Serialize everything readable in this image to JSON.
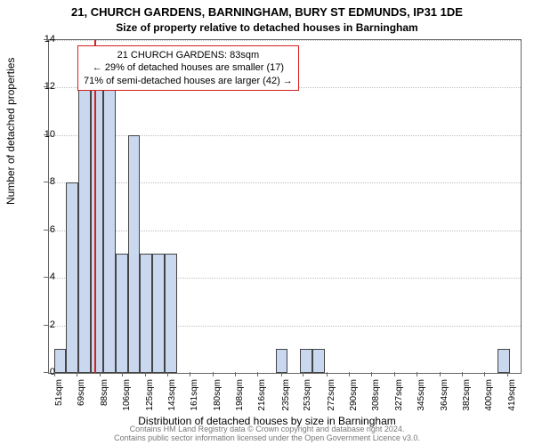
{
  "titles": {
    "main": "21, CHURCH GARDENS, BARNINGHAM, BURY ST EDMUNDS, IP31 1DE",
    "sub": "Size of property relative to detached houses in Barningham"
  },
  "axes": {
    "ylabel": "Number of detached properties",
    "xlabel": "Distribution of detached houses by size in Barningham",
    "ylim": [
      0,
      14
    ],
    "ytick_step": 2,
    "label_fontsize": 12,
    "tick_fontsize": 11
  },
  "chart": {
    "type": "histogram",
    "bar_color": "#c9d7ef",
    "bar_border": "#444",
    "grid_color": "#bfbfbf",
    "background_color": "#ffffff",
    "reference_line_color": "#d62020",
    "reference_line_x": 83,
    "x_range": [
      46,
      429
    ],
    "x_ticks": [
      51,
      69,
      88,
      106,
      125,
      143,
      161,
      180,
      198,
      216,
      235,
      253,
      272,
      290,
      308,
      327,
      345,
      364,
      382,
      400,
      419
    ],
    "x_tick_suffix": "sqm",
    "bars": [
      {
        "x0": 50,
        "x1": 60,
        "y": 1
      },
      {
        "x0": 60,
        "x1": 70,
        "y": 8
      },
      {
        "x0": 70,
        "x1": 80,
        "y": 13
      },
      {
        "x0": 80,
        "x1": 90,
        "y": 12
      },
      {
        "x0": 90,
        "x1": 100,
        "y": 12
      },
      {
        "x0": 100,
        "x1": 110,
        "y": 5
      },
      {
        "x0": 110,
        "x1": 120,
        "y": 10
      },
      {
        "x0": 120,
        "x1": 130,
        "y": 5
      },
      {
        "x0": 130,
        "x1": 140,
        "y": 5
      },
      {
        "x0": 140,
        "x1": 150,
        "y": 5
      },
      {
        "x0": 230,
        "x1": 240,
        "y": 1
      },
      {
        "x0": 250,
        "x1": 260,
        "y": 1
      },
      {
        "x0": 260,
        "x1": 270,
        "y": 1
      },
      {
        "x0": 410,
        "x1": 420,
        "y": 1
      }
    ]
  },
  "legend": {
    "line1": "21 CHURCH GARDENS: 83sqm",
    "line2": "← 29% of detached houses are smaller (17)",
    "line3": "71% of semi-detached houses are larger (42) →",
    "border_color": "#d62020"
  },
  "footer": {
    "line1": "Contains HM Land Registry data © Crown copyright and database right 2024.",
    "line2": "Contains public sector information licensed under the Open Government Licence v3.0."
  }
}
